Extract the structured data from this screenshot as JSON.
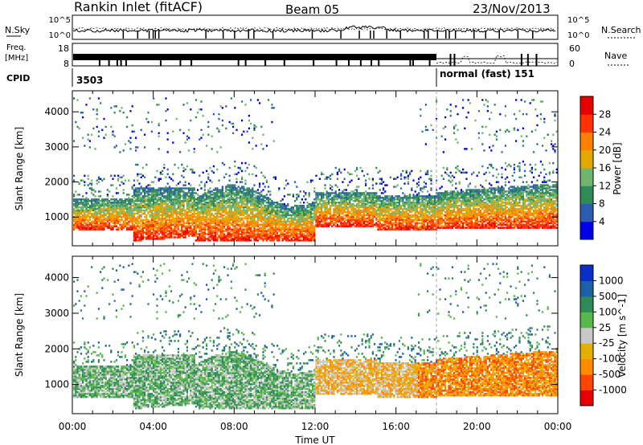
{
  "header": {
    "station": "Rankin Inlet (fitACF)",
    "beam": "Beam 05",
    "date": "23/Nov/2013"
  },
  "noise_panel": {
    "left_label": "N.Sky",
    "right_label": "N.Search",
    "left_ticks": [
      "10^5",
      "10^0"
    ],
    "right_ticks": [
      "10^5",
      "10^0"
    ]
  },
  "freq_panel": {
    "left_label_top": "Freq.",
    "left_label_bottom": "[MHz]",
    "left_ticks": [
      "18",
      "8"
    ],
    "right_label": "Nave",
    "right_ticks": [
      "60",
      "0"
    ]
  },
  "cpid": {
    "label": "CPID",
    "first_value": "3503",
    "second_value": "normal (fast) 151"
  },
  "time_axis": {
    "label": "Time UT",
    "ticks": [
      "00:00",
      "04:00",
      "08:00",
      "12:00",
      "16:00",
      "20:00",
      "00:00"
    ]
  },
  "range_axis": {
    "label": "Slant Range [km]",
    "ticks": [
      "1000",
      "2000",
      "3000",
      "4000"
    ]
  },
  "colors": {
    "power": [
      "#0000e6",
      "#2b5cb0",
      "#2e8b57",
      "#6fb46f",
      "#e6a800",
      "#ff7f00",
      "#ff3200",
      "#e60000"
    ],
    "velocity": [
      "#0a2fc8",
      "#1f5fa8",
      "#2e8b57",
      "#58b84a",
      "#c8c8c8",
      "#e6b000",
      "#ff8c00",
      "#ff4500",
      "#e60000"
    ]
  },
  "power_colorbar": {
    "label": "Power [dB]",
    "ticks": [
      "4",
      "8",
      "12",
      "16",
      "20",
      "24",
      "28"
    ]
  },
  "velocity_colorbar": {
    "label": "Velocity [m s^-1]",
    "ticks": [
      "1000",
      "500",
      "100",
      "25",
      "-25",
      "-100",
      "-500",
      "-1000"
    ]
  },
  "chart_data": {
    "type": "heatmap",
    "x_range_hours": [
      0,
      24
    ],
    "y_range_km": [
      180,
      4600
    ],
    "cpid_change_time_hours": 18.0
  }
}
